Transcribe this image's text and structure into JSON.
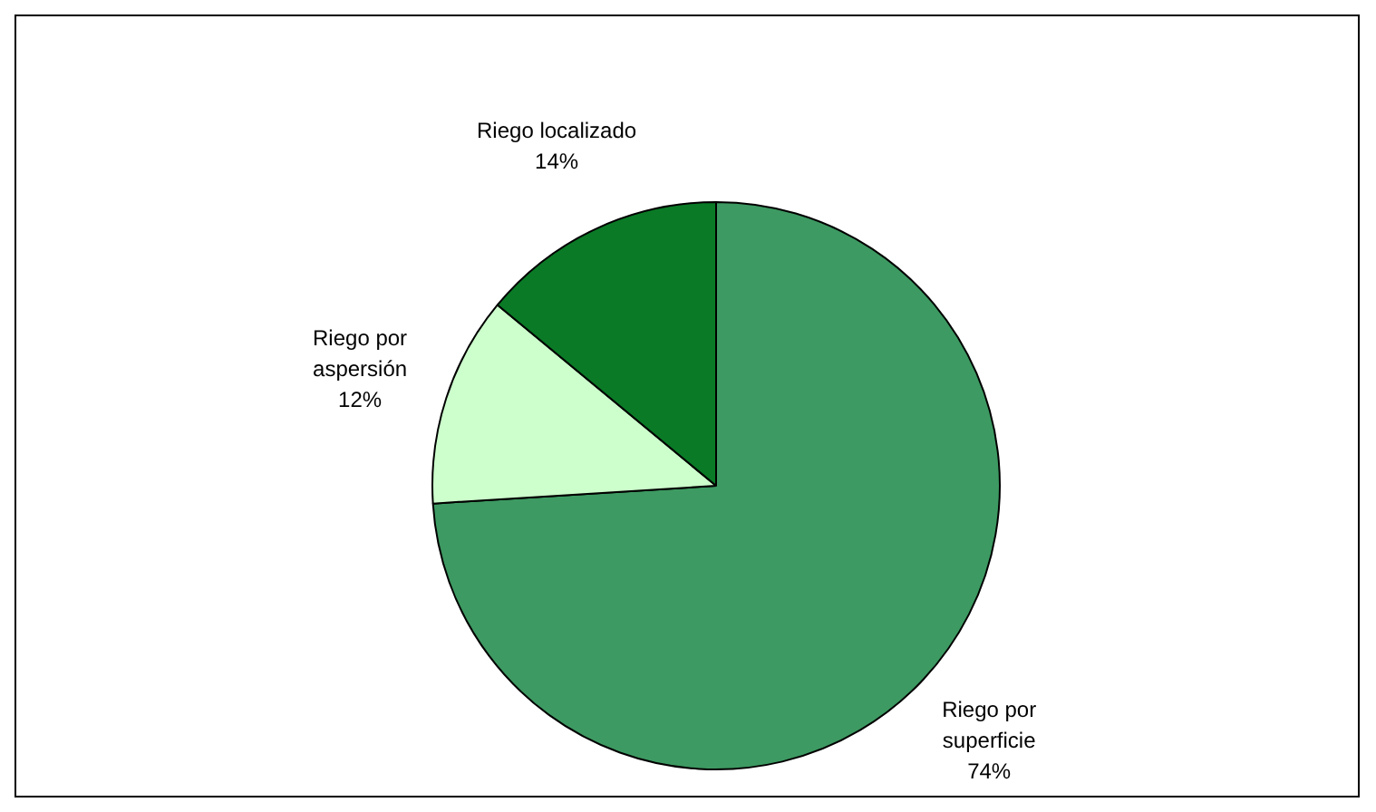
{
  "chart_data": {
    "type": "pie",
    "categories": [
      "Riego por superficie",
      "Riego por aspersión",
      "Riego localizado"
    ],
    "values": [
      74,
      12,
      14
    ],
    "colors": [
      "#3d9a62",
      "#ccffcc",
      "#0a7a26"
    ],
    "value_labels": [
      "74%",
      "12%",
      "14%"
    ],
    "legend": false
  }
}
